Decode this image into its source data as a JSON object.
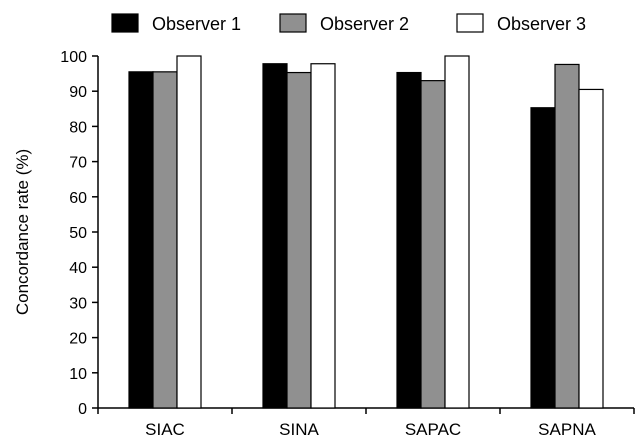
{
  "chart_data": {
    "type": "bar",
    "title": "",
    "xlabel": "",
    "ylabel": "Concordance rate (%)",
    "ylim": [
      0,
      100
    ],
    "yticks": [
      "0",
      "10",
      "20",
      "30",
      "40",
      "50",
      "60",
      "70",
      "80",
      "90",
      "100"
    ],
    "categories": [
      "SIAC",
      "SINA",
      "SAPAC",
      "SAPNA"
    ],
    "series": [
      {
        "name": "Observer 1",
        "color": "#000000",
        "values": [
          95.5,
          97.8,
          95.3,
          85.3
        ]
      },
      {
        "name": "Observer 2",
        "color": "#909090",
        "values": [
          95.5,
          95.3,
          93.0,
          97.6
        ]
      },
      {
        "name": "Observer 3",
        "color": "#ffffff",
        "values": [
          100,
          97.8,
          100,
          90.5
        ]
      }
    ],
    "legend_position": "top",
    "grid": false
  }
}
